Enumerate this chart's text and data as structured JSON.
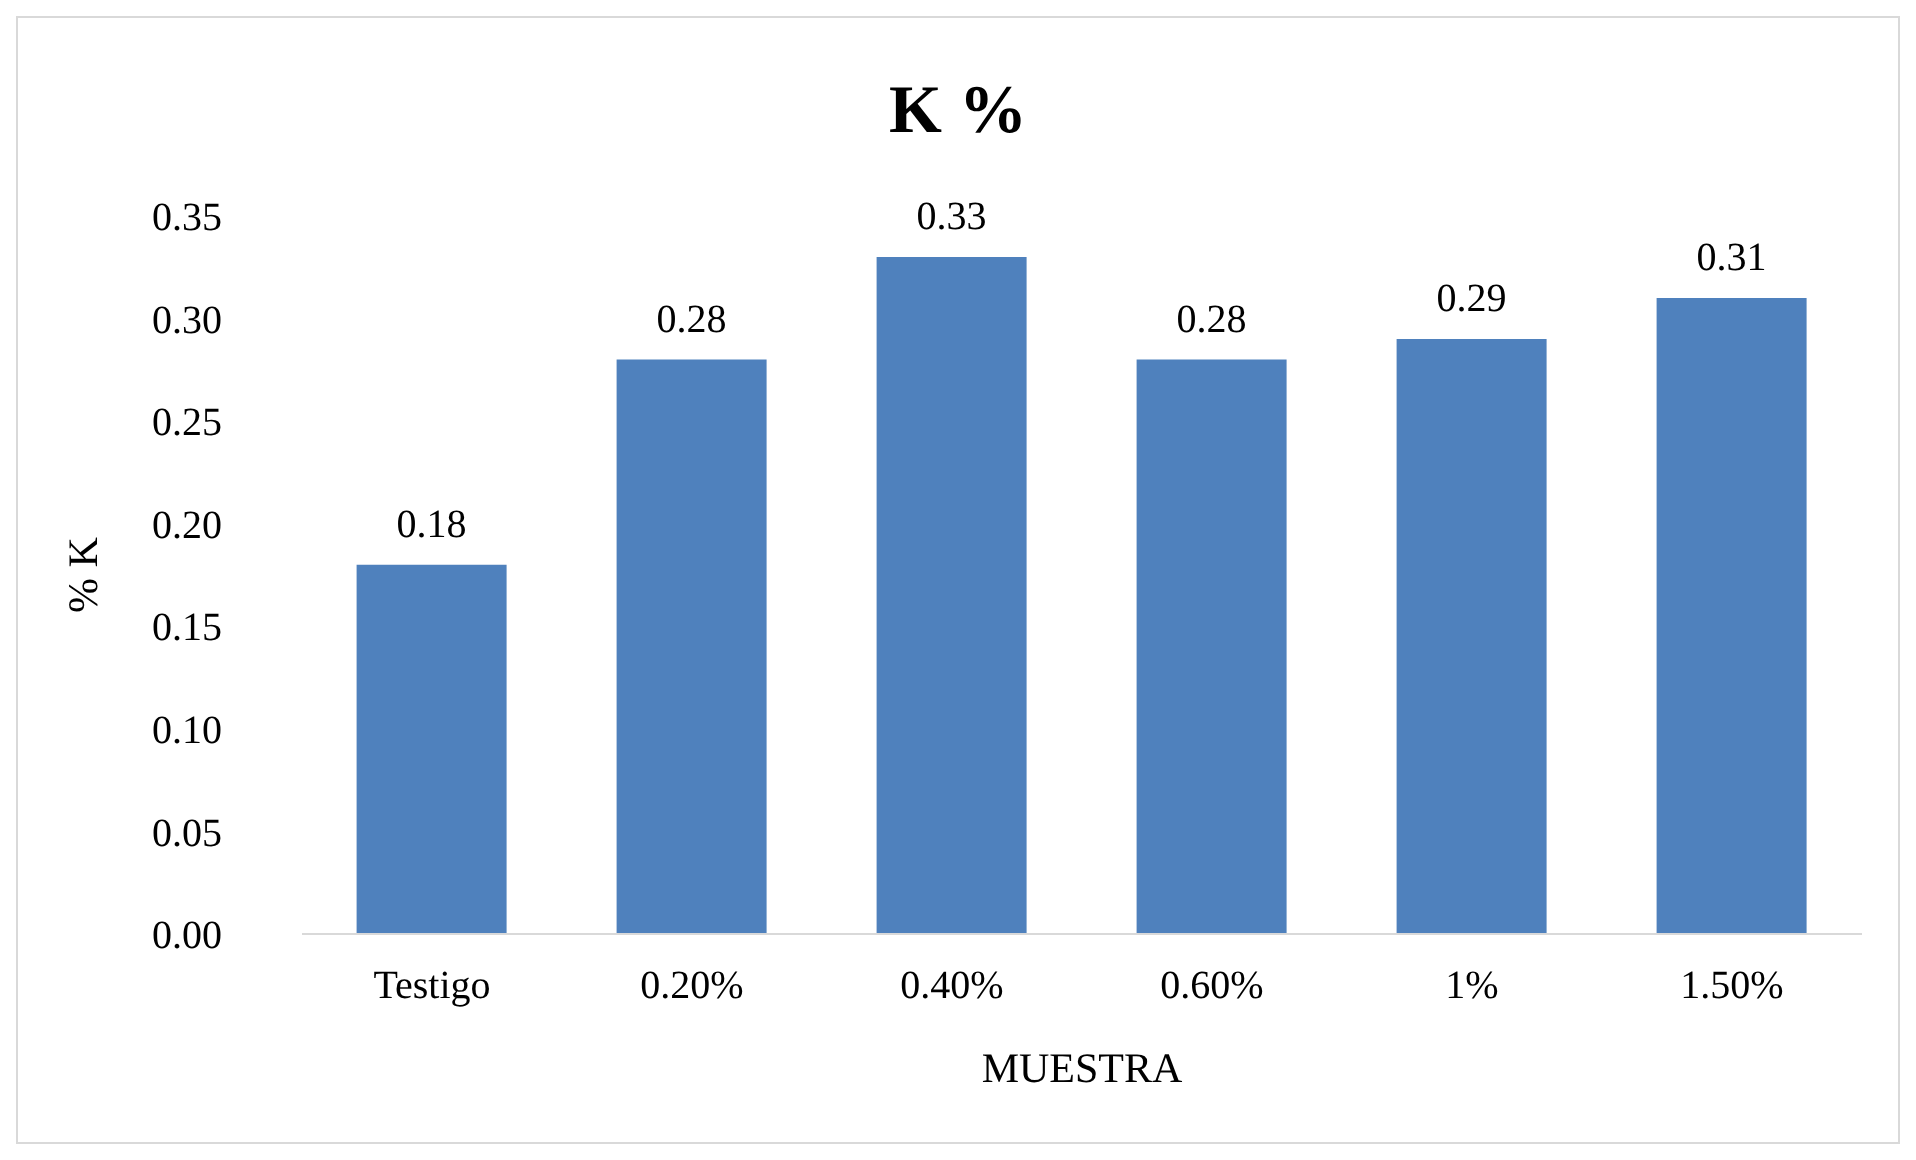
{
  "chart_data": {
    "type": "bar",
    "title": "K %",
    "xlabel": "MUESTRA",
    "ylabel": "% K",
    "categories": [
      "Testigo",
      "0.20%",
      "0.40%",
      "0.60%",
      "1%",
      "1.50%"
    ],
    "values": [
      0.18,
      0.28,
      0.33,
      0.28,
      0.29,
      0.31
    ],
    "color": "#4f81bd",
    "ylim": [
      0,
      0.35
    ],
    "yticks": [
      {
        "value": 0,
        "label": "0.00"
      },
      {
        "value": 0.05,
        "label": "0.05"
      },
      {
        "value": 0.1,
        "label": "0.10"
      },
      {
        "value": 0.15,
        "label": "0.15"
      },
      {
        "value": 0.2,
        "label": "0.20"
      },
      {
        "value": 0.25,
        "label": "0.25"
      },
      {
        "value": 0.3,
        "label": "0.30"
      },
      {
        "value": 0.35,
        "label": "0.35"
      }
    ],
    "grid": false,
    "legend": false,
    "data_labels": true
  }
}
